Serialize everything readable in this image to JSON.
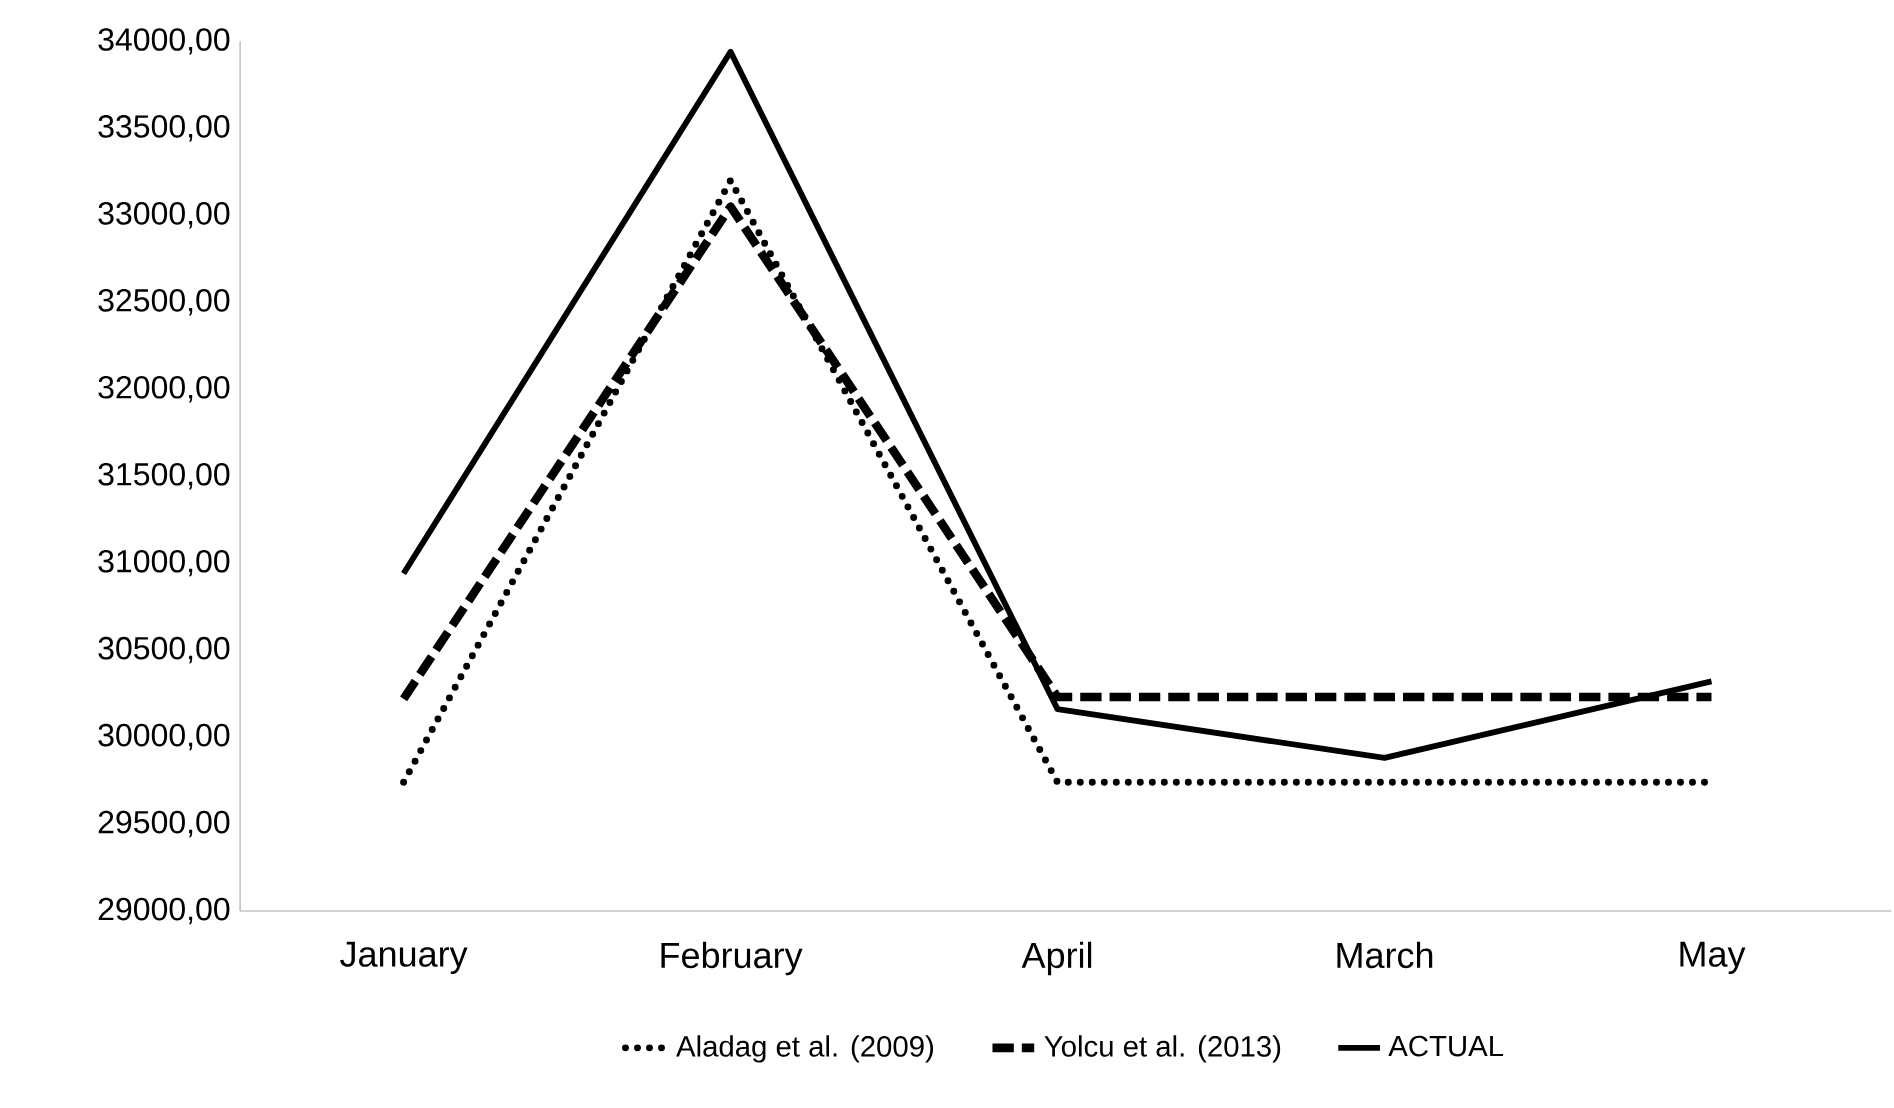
{
  "chart_data": {
    "type": "line",
    "categories": [
      "January",
      "February",
      "April",
      "March",
      "May"
    ],
    "series": [
      {
        "name": "Aladag et al. (2009)",
        "color": "#000000",
        "line_style": "dotted",
        "values": [
          29740,
          33200,
          29740,
          29740,
          29740
        ]
      },
      {
        "name": "Yolcu et al. (2013)",
        "color": "#000000",
        "line_style": "dashed",
        "values": [
          30220,
          33050,
          30230,
          30230,
          30230
        ]
      },
      {
        "name": "ACTUAL",
        "color": "#000000",
        "line_style": "solid",
        "values": [
          30940,
          33940,
          30160,
          29880,
          30320
        ]
      }
    ],
    "ylim": [
      29000,
      34000
    ],
    "yticks": [
      {
        "value": 29000,
        "label": "29000,00"
      },
      {
        "value": 29500,
        "label": "29500,00"
      },
      {
        "value": 30000,
        "label": "30000,00"
      },
      {
        "value": 30500,
        "label": "30500,00"
      },
      {
        "value": 31000,
        "label": "31000,00"
      },
      {
        "value": 31500,
        "label": "31500,00"
      },
      {
        "value": 32000,
        "label": "32000,00"
      },
      {
        "value": 32500,
        "label": "32500,00"
      },
      {
        "value": 33000,
        "label": "33000,00"
      },
      {
        "value": 33500,
        "label": "33500,00"
      },
      {
        "value": 34000,
        "label": "34000,00"
      }
    ],
    "grid": false,
    "legend": "bottom",
    "marker": "none"
  }
}
